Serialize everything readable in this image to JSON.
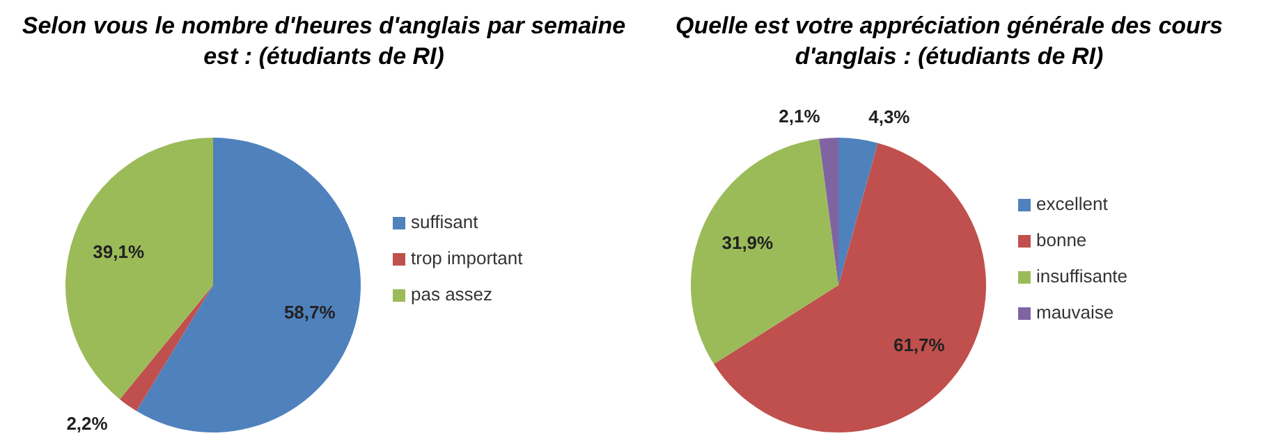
{
  "chart_data": [
    {
      "type": "pie",
      "title": "Selon vous le nombre d'heures d'anglais par semaine est : (étudiants de RI)",
      "categories": [
        "suffisant",
        "trop important",
        "pas assez"
      ],
      "values": [
        58.7,
        2.2,
        39.1
      ],
      "colors": [
        "#4f81bd",
        "#c0504d",
        "#9bbb59"
      ],
      "value_labels": [
        "58,7%",
        "2,2%",
        "39,1%"
      ],
      "legend": "right"
    },
    {
      "type": "pie",
      "title": "Quelle est votre appréciation générale des cours d'anglais : (étudiants de RI)",
      "categories": [
        "excellent",
        "bonne",
        "insuffisante",
        "mauvaise"
      ],
      "values": [
        4.3,
        61.7,
        31.9,
        2.1
      ],
      "colors": [
        "#4f81bd",
        "#c0504d",
        "#9bbb59",
        "#8064a2"
      ],
      "value_labels": [
        "4,3%",
        "61,7%",
        "31,9%",
        "2,1%"
      ],
      "legend": "right"
    }
  ]
}
